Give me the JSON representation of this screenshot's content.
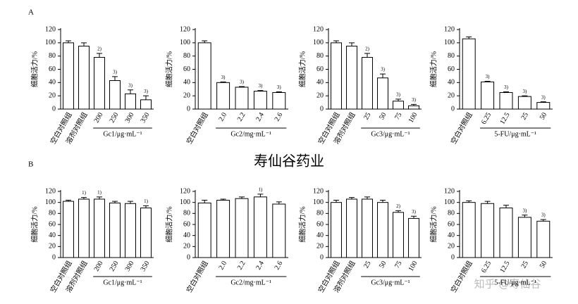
{
  "panel_labels": [
    "A",
    "B"
  ],
  "center_text": "寿仙谷药业",
  "watermark": "知乎 @寿仙谷",
  "chart_data": [
    {
      "type": "bar",
      "ylabel": "细胞活力/%",
      "xlabel": "Gc1/μg·mL⁻¹",
      "categories": [
        "空白对照组",
        "溶剂对照组",
        "200",
        "250",
        "300",
        "350"
      ],
      "values": [
        100,
        95,
        78,
        43,
        23,
        14
      ],
      "errors": [
        3,
        5,
        6,
        6,
        6,
        6
      ],
      "annotations": [
        null,
        null,
        "2)",
        "3)",
        "3)",
        "3)"
      ],
      "ylim": [
        0,
        120
      ],
      "yticks": [
        0,
        20,
        40,
        60,
        80,
        100,
        120
      ],
      "color": "#ffffff"
    },
    {
      "type": "bar",
      "ylabel": "细胞活力/%",
      "xlabel": "Gc2/mg·mL⁻¹",
      "categories": [
        "空白对照组",
        "2.0",
        "2.2",
        "2.4",
        "2.6"
      ],
      "values": [
        100,
        40,
        33,
        27,
        25
      ],
      "errors": [
        3,
        1,
        1,
        1,
        1
      ],
      "annotations": [
        null,
        "3)",
        "3)",
        "3)",
        "3)"
      ],
      "ylim": [
        0,
        120
      ],
      "yticks": [
        0,
        20,
        40,
        60,
        80,
        100,
        120
      ],
      "color": "#ffffff"
    },
    {
      "type": "bar",
      "ylabel": "细胞活力/%",
      "xlabel": "Gc3/μg·mL⁻¹",
      "categories": [
        "空白对照组",
        "溶剂对照组",
        "25",
        "50",
        "75",
        "100"
      ],
      "values": [
        100,
        95,
        78,
        47,
        12,
        5
      ],
      "errors": [
        3,
        5,
        6,
        6,
        3,
        2
      ],
      "annotations": [
        null,
        null,
        "2)",
        "3)",
        "3)",
        "3)"
      ],
      "ylim": [
        0,
        120
      ],
      "yticks": [
        0,
        20,
        40,
        60,
        80,
        100,
        120
      ],
      "color": "#ffffff"
    },
    {
      "type": "bar",
      "ylabel": "细胞活力/%",
      "xlabel": "5-FU/μg·mL⁻¹",
      "categories": [
        "空白对照组",
        "6.25",
        "12.5",
        "25",
        "50"
      ],
      "values": [
        106,
        41,
        25,
        19,
        10
      ],
      "errors": [
        3,
        1,
        1,
        1,
        1
      ],
      "annotations": [
        null,
        "3)",
        "3)",
        "3)",
        "3)"
      ],
      "ylim": [
        0,
        120
      ],
      "yticks": [
        0,
        20,
        40,
        60,
        80,
        100,
        120
      ],
      "color": "#ffffff"
    },
    {
      "type": "bar",
      "ylabel": "细胞活力/%",
      "xlabel": "Gc1/μg·mL⁻¹",
      "categories": [
        "空白对照组",
        "溶剂对照组",
        "200",
        "250",
        "300",
        "350"
      ],
      "values": [
        102,
        106,
        106,
        99,
        98,
        90
      ],
      "errors": [
        2,
        3,
        4,
        3,
        4,
        4
      ],
      "annotations": [
        null,
        "1)",
        "1)",
        null,
        null,
        "1)"
      ],
      "ylim": [
        0,
        120
      ],
      "yticks": [
        0,
        20,
        40,
        60,
        80,
        100,
        120
      ],
      "color": "#ffffff"
    },
    {
      "type": "bar",
      "ylabel": "细胞活力/%",
      "xlabel": "Gc2/mg·mL⁻¹",
      "categories": [
        "空白对照组",
        "2.0",
        "2.2",
        "2.4",
        "2.6"
      ],
      "values": [
        99,
        104,
        107,
        110,
        97
      ],
      "errors": [
        5,
        2,
        3,
        5,
        4
      ],
      "annotations": [
        null,
        null,
        null,
        "1)",
        null
      ],
      "ylim": [
        0,
        120
      ],
      "yticks": [
        0,
        20,
        40,
        60,
        80,
        100,
        120
      ],
      "color": "#ffffff"
    },
    {
      "type": "bar",
      "ylabel": "细胞活力/%",
      "xlabel": "Gc3/μg·mL⁻¹",
      "categories": [
        "空白对照组",
        "溶剂对照组",
        "25",
        "50",
        "75",
        "100"
      ],
      "values": [
        100,
        106,
        106,
        100,
        82,
        71
      ],
      "errors": [
        4,
        3,
        4,
        4,
        3,
        4
      ],
      "annotations": [
        null,
        null,
        null,
        null,
        "2)",
        "3)"
      ],
      "ylim": [
        0,
        120
      ],
      "yticks": [
        0,
        20,
        40,
        60,
        80,
        100,
        120
      ],
      "color": "#ffffff"
    },
    {
      "type": "bar",
      "ylabel": "细胞活力/%",
      "xlabel": "5-FU/μg·mL⁻¹",
      "categories": [
        "空白对照组",
        "6.25",
        "12.5",
        "25",
        "50"
      ],
      "values": [
        100,
        98,
        90,
        73,
        66
      ],
      "errors": [
        3,
        4,
        5,
        4,
        3
      ],
      "annotations": [
        null,
        null,
        null,
        "3)",
        "3)"
      ],
      "ylim": [
        0,
        120
      ],
      "yticks": [
        0,
        20,
        40,
        60,
        80,
        100,
        120
      ],
      "color": "#ffffff"
    }
  ]
}
